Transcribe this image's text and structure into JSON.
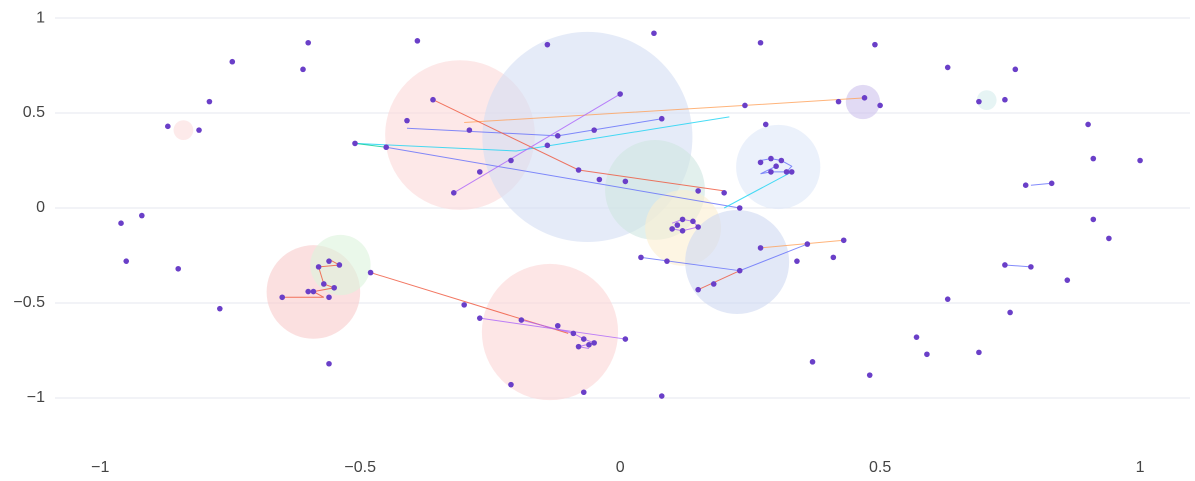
{
  "chart_data": {
    "type": "scatter",
    "xlim": [
      -1.087,
      1.096
    ],
    "ylim": [
      -1.274,
      1.095
    ],
    "xticks": [
      {
        "value": -1,
        "label": "−1"
      },
      {
        "value": -0.5,
        "label": "−0.5"
      },
      0,
      0.5,
      1
    ],
    "yticks": [
      {
        "value": -1,
        "label": "−1"
      },
      {
        "value": -0.5,
        "label": "−0.5"
      },
      0,
      0.5,
      1
    ],
    "grid": true,
    "bubbles": {
      "x": [
        -0.308,
        -0.063,
        0.067,
        0.121,
        0.225,
        0.304,
        -0.135,
        -0.59,
        -0.538,
        0.467,
        -0.84,
        0.705
      ],
      "y": [
        0.384,
        0.374,
        0.095,
        -0.105,
        -0.284,
        0.216,
        -0.653,
        -0.442,
        -0.3,
        0.558,
        0.41,
        0.568
      ],
      "size": [
        0.144,
        0.202,
        0.096,
        0.073,
        0.1,
        0.081,
        0.131,
        0.09,
        0.058,
        0.033,
        0.019,
        0.019
      ],
      "colors": [
        "#fbd9d9",
        "#d3ddf3",
        "#cfe6e1",
        "#fcefd0",
        "#cfd9f1",
        "#dde8f8",
        "#fbd6d6",
        "#f8cccc",
        "#dcf3dc",
        "#cdc2ec",
        "#fcdcdc",
        "#d6ecec"
      ]
    },
    "edges": [
      {
        "color": "#636efa",
        "x": [
          -0.41,
          -0.12,
          0.08
        ],
        "y": [
          0.42,
          0.38,
          0.47
        ]
      },
      {
        "color": "#ffa15a",
        "x": [
          -0.3,
          0.24,
          0.47
        ],
        "y": [
          0.45,
          0.54,
          0.58
        ]
      },
      {
        "color": "#19d3f3",
        "x": [
          -0.51,
          -0.2,
          0.21
        ],
        "y": [
          0.34,
          0.3,
          0.48
        ]
      },
      {
        "color": "#ef553b",
        "x": [
          -0.36,
          -0.08,
          0.2
        ],
        "y": [
          0.57,
          0.2,
          0.09
        ]
      },
      {
        "color": "#636efa",
        "x": [
          -0.45,
          0.23
        ],
        "y": [
          0.32,
          0.0
        ]
      },
      {
        "color": "#ef553b",
        "x": [
          -0.48,
          -0.1
        ],
        "y": [
          -0.34,
          -0.66
        ]
      },
      {
        "color": "#636efa",
        "x": [
          0.23,
          0.36
        ],
        "y": [
          -0.33,
          -0.19
        ]
      },
      {
        "color": "#ffa15a",
        "x": [
          0.27,
          0.43
        ],
        "y": [
          -0.21,
          -0.17
        ]
      },
      {
        "color": "#ef553b",
        "x": [
          0.15,
          0.23
        ],
        "y": [
          -0.43,
          -0.33
        ]
      },
      {
        "color": "#636efa",
        "x": [
          0.04,
          0.23
        ],
        "y": [
          -0.26,
          -0.33
        ]
      },
      {
        "color": "#636efa",
        "x": [
          0.79,
          0.83
        ],
        "y": [
          0.12,
          0.13
        ]
      },
      {
        "color": "#636efa",
        "x": [
          0.74,
          0.79
        ],
        "y": [
          -0.3,
          -0.31
        ]
      },
      {
        "color": "#ab63fa",
        "x": [
          -0.27,
          0.01
        ],
        "y": [
          -0.58,
          -0.69
        ]
      },
      {
        "color": "#19d3f3",
        "x": [
          0.2,
          0.33
        ],
        "y": [
          0.0,
          0.19
        ]
      },
      {
        "color": "#ab63fa",
        "x": [
          -0.32,
          0.0
        ],
        "y": [
          0.08,
          0.6
        ]
      },
      {
        "color": "#636efa",
        "x": [
          0.27,
          0.29,
          0.31,
          0.33,
          0.32,
          0.29,
          0.27,
          0.3
        ],
        "y": [
          0.25,
          0.26,
          0.25,
          0.22,
          0.19,
          0.19,
          0.18,
          0.22
        ]
      },
      {
        "color": "#ab63fa",
        "x": [
          0.1,
          0.12,
          0.14,
          0.15,
          0.12,
          0.1
        ],
        "y": [
          -0.08,
          -0.06,
          -0.07,
          -0.1,
          -0.12,
          -0.11
        ]
      },
      {
        "color": "#ef553b",
        "x": [
          -0.56,
          -0.54,
          -0.58,
          -0.57,
          -0.55,
          -0.59,
          -0.57,
          -0.65
        ],
        "y": [
          -0.27,
          -0.3,
          -0.31,
          -0.4,
          -0.42,
          -0.44,
          -0.47,
          -0.47
        ]
      },
      {
        "color": "#ab63fa",
        "x": [
          -0.19,
          -0.09,
          -0.07,
          -0.05,
          -0.08,
          -0.06
        ],
        "y": [
          -0.59,
          -0.66,
          -0.69,
          -0.71,
          -0.73,
          -0.74
        ]
      },
      {
        "color": "#00cc96",
        "x": [
          -0.51,
          -0.45
        ],
        "y": [
          0.34,
          0.32
        ]
      }
    ],
    "nodes": {
      "color": "#6a3fc8",
      "x": [
        -0.6,
        -0.39,
        -0.746,
        -0.61,
        -0.79,
        -0.87,
        -0.81,
        -0.96,
        -0.92,
        -0.95,
        -0.85,
        -0.77,
        -0.56,
        -0.14,
        0.065,
        0.27,
        0.49,
        0.63,
        0.76,
        0.9,
        0.91,
        1.0,
        0.91,
        0.94,
        0.86,
        0.75,
        0.69,
        0.59,
        0.57,
        0.63,
        0.48,
        0.37,
        0.08,
        -0.07,
        -0.21,
        0.01,
        -0.3,
        0.69,
        0.74,
        0.78,
        0.83,
        0.74,
        0.79,
        0.47,
        0.5,
        0.42,
        0.24,
        0.28,
        0.0,
        -0.36,
        -0.41,
        -0.51,
        -0.45,
        -0.32,
        -0.27,
        0.01,
        0.15,
        0.2,
        0.23,
        0.11,
        0.14,
        0.43,
        0.36,
        0.27,
        0.04,
        0.09,
        0.41,
        0.34,
        0.23,
        0.15,
        0.18,
        0.27,
        0.33,
        -0.48,
        -0.56,
        -0.65,
        -0.6,
        -0.56,
        -0.12,
        -0.06,
        -0.09,
        -0.19,
        -0.27,
        -0.14,
        -0.12,
        -0.05,
        0.08,
        -0.21,
        -0.29,
        -0.08,
        -0.04,
        0.29,
        0.31,
        0.32,
        0.29,
        0.3,
        0.12,
        0.15,
        0.12,
        0.1,
        -0.54,
        -0.58,
        -0.57,
        -0.55,
        -0.59,
        -0.07,
        -0.05,
        -0.08
      ],
      "y": [
        0.87,
        0.88,
        0.77,
        0.73,
        0.56,
        0.43,
        0.41,
        -0.08,
        -0.04,
        -0.28,
        -0.32,
        -0.53,
        -0.82,
        0.86,
        0.92,
        0.87,
        0.86,
        0.74,
        0.73,
        0.44,
        0.26,
        0.25,
        -0.06,
        -0.16,
        -0.38,
        -0.55,
        -0.76,
        -0.77,
        -0.68,
        -0.48,
        -0.88,
        -0.81,
        -0.99,
        -0.97,
        -0.93,
        -0.69,
        -0.51,
        0.56,
        0.57,
        0.12,
        0.13,
        -0.3,
        -0.31,
        0.58,
        0.54,
        0.56,
        0.54,
        0.44,
        0.6,
        0.57,
        0.46,
        0.34,
        0.32,
        0.08,
        0.19,
        0.14,
        0.09,
        0.08,
        0.0,
        -0.09,
        -0.07,
        -0.17,
        -0.19,
        -0.21,
        -0.26,
        -0.28,
        -0.26,
        -0.28,
        -0.33,
        -0.43,
        -0.4,
        0.24,
        0.19,
        -0.34,
        -0.28,
        -0.47,
        -0.44,
        -0.47,
        -0.62,
        -0.72,
        -0.66,
        -0.59,
        -0.58,
        0.33,
        0.38,
        0.41,
        0.47,
        0.25,
        0.41,
        0.2,
        0.15,
        0.26,
        0.25,
        0.19,
        0.19,
        0.22,
        -0.06,
        -0.1,
        -0.12,
        -0.11,
        -0.3,
        -0.31,
        -0.4,
        -0.42,
        -0.44,
        -0.69,
        -0.71,
        -0.73
      ]
    }
  }
}
